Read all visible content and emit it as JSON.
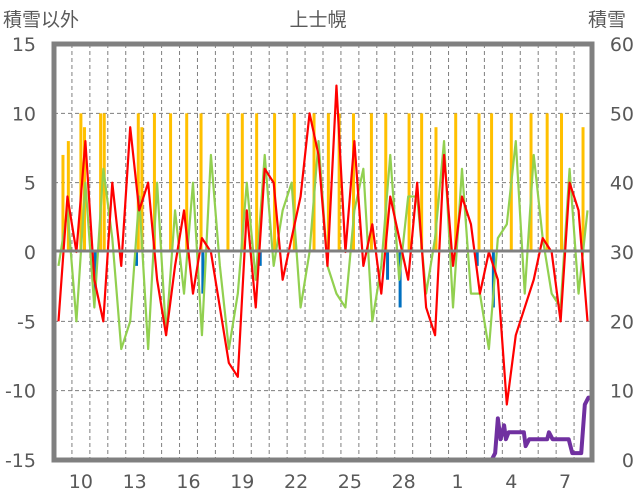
{
  "chart_data": {
    "type": "line",
    "title": "上士幌",
    "ylabel_left": "積雪以外",
    "ylabel_right": "積雪",
    "ylim_left": [
      -15,
      15
    ],
    "ylim_right": [
      0,
      60
    ],
    "yticks_left": [
      "15",
      "10",
      "5",
      "0",
      "-5",
      "-10",
      "-15"
    ],
    "yticks_right": [
      "60",
      "50",
      "40",
      "30",
      "20",
      "10",
      "0"
    ],
    "days": 30,
    "xtick_labels": [
      {
        "day_index": 1,
        "label": "10"
      },
      {
        "day_index": 4,
        "label": "13"
      },
      {
        "day_index": 7,
        "label": "16"
      },
      {
        "day_index": 10,
        "label": "19"
      },
      {
        "day_index": 13,
        "label": "22"
      },
      {
        "day_index": 16,
        "label": "25"
      },
      {
        "day_index": 19,
        "label": "28"
      },
      {
        "day_index": 22,
        "label": "1"
      },
      {
        "day_index": 25,
        "label": "4"
      },
      {
        "day_index": 28,
        "label": "7"
      }
    ],
    "grid": true,
    "series": [
      {
        "name": "orange-bars",
        "kind": "bar",
        "axis": "left",
        "color": "#FFC000",
        "points": [
          [
            0.5,
            7
          ],
          [
            0.8,
            8
          ],
          [
            1.5,
            10
          ],
          [
            1.7,
            9
          ],
          [
            2.6,
            10
          ],
          [
            2.8,
            10
          ],
          [
            4.7,
            10
          ],
          [
            4.9,
            9
          ],
          [
            5.6,
            10
          ],
          [
            6.5,
            10
          ],
          [
            7.4,
            10
          ],
          [
            8.2,
            10
          ],
          [
            9.7,
            10
          ],
          [
            10.5,
            10
          ],
          [
            11.3,
            10
          ],
          [
            12.3,
            10
          ],
          [
            13.4,
            10
          ],
          [
            14.5,
            10
          ],
          [
            15.3,
            10
          ],
          [
            15.9,
            10
          ],
          [
            16.7,
            10
          ],
          [
            17.7,
            10
          ],
          [
            18.5,
            10
          ],
          [
            19.8,
            10
          ],
          [
            20.5,
            10
          ],
          [
            21.3,
            9
          ],
          [
            22.4,
            10
          ],
          [
            23.7,
            10
          ],
          [
            24.4,
            10
          ],
          [
            25.5,
            10
          ],
          [
            26.6,
            10
          ],
          [
            27.5,
            10
          ],
          [
            28.3,
            10
          ],
          [
            29.5,
            9
          ]
        ]
      },
      {
        "name": "blue-bars",
        "kind": "bar",
        "axis": "left",
        "color": "#0070C0",
        "points": [
          [
            2.3,
            -3
          ],
          [
            4.6,
            -1
          ],
          [
            8.3,
            -3
          ],
          [
            11.5,
            -1
          ],
          [
            18.6,
            -2
          ],
          [
            19.3,
            -4
          ],
          [
            23.6,
            -1
          ],
          [
            24.5,
            -4
          ]
        ]
      },
      {
        "name": "green-line",
        "kind": "line",
        "axis": "left",
        "color": "#92D050",
        "values": [
          -1,
          3,
          -5,
          5,
          -4,
          6,
          1,
          -7,
          -5,
          4,
          -7,
          5,
          -6,
          3,
          -3,
          5,
          -6,
          7,
          -1,
          -7,
          -3,
          5,
          -2,
          7,
          -1,
          3,
          5,
          -4,
          0,
          8,
          -1,
          -3,
          -4,
          3,
          6,
          -5,
          -1,
          7,
          -2,
          4,
          4,
          -3,
          1,
          8,
          -4,
          6,
          -3,
          -3,
          -7,
          1,
          2,
          8,
          -3,
          7,
          1,
          -3,
          -4,
          6,
          -3,
          3
        ]
      },
      {
        "name": "red-line",
        "kind": "line",
        "axis": "left",
        "color": "#FF0000",
        "values": [
          -5,
          4,
          0,
          8,
          -2,
          -5,
          5,
          -1,
          9,
          3,
          5,
          -2,
          -6,
          -1,
          3,
          -3,
          1,
          0,
          -4,
          -8,
          -9,
          3,
          -4,
          6,
          5,
          -2,
          1,
          4,
          10,
          7,
          -1,
          12,
          0,
          8,
          -1,
          2,
          -3,
          4,
          1,
          -2,
          5,
          -4,
          -6,
          7,
          -1,
          4,
          2,
          -3,
          0,
          -2,
          -11,
          -6,
          -4,
          -2,
          1,
          0,
          -5,
          5,
          3,
          -5
        ]
      },
      {
        "name": "snow-depth",
        "kind": "line",
        "axis": "right",
        "color": "#7030A0",
        "points": [
          [
            0,
            0
          ],
          [
            24.4,
            0
          ],
          [
            24.6,
            1
          ],
          [
            24.75,
            6
          ],
          [
            24.9,
            3
          ],
          [
            25.1,
            5
          ],
          [
            25.2,
            3
          ],
          [
            25.35,
            4
          ],
          [
            25.7,
            4
          ],
          [
            26.2,
            4
          ],
          [
            26.3,
            2
          ],
          [
            26.5,
            3
          ],
          [
            27.5,
            3
          ],
          [
            27.6,
            4
          ],
          [
            27.8,
            3
          ],
          [
            28.7,
            3
          ],
          [
            28.9,
            1
          ],
          [
            29.4,
            1
          ],
          [
            29.6,
            8
          ],
          [
            29.8,
            9
          ],
          [
            30,
            9
          ]
        ]
      }
    ]
  }
}
